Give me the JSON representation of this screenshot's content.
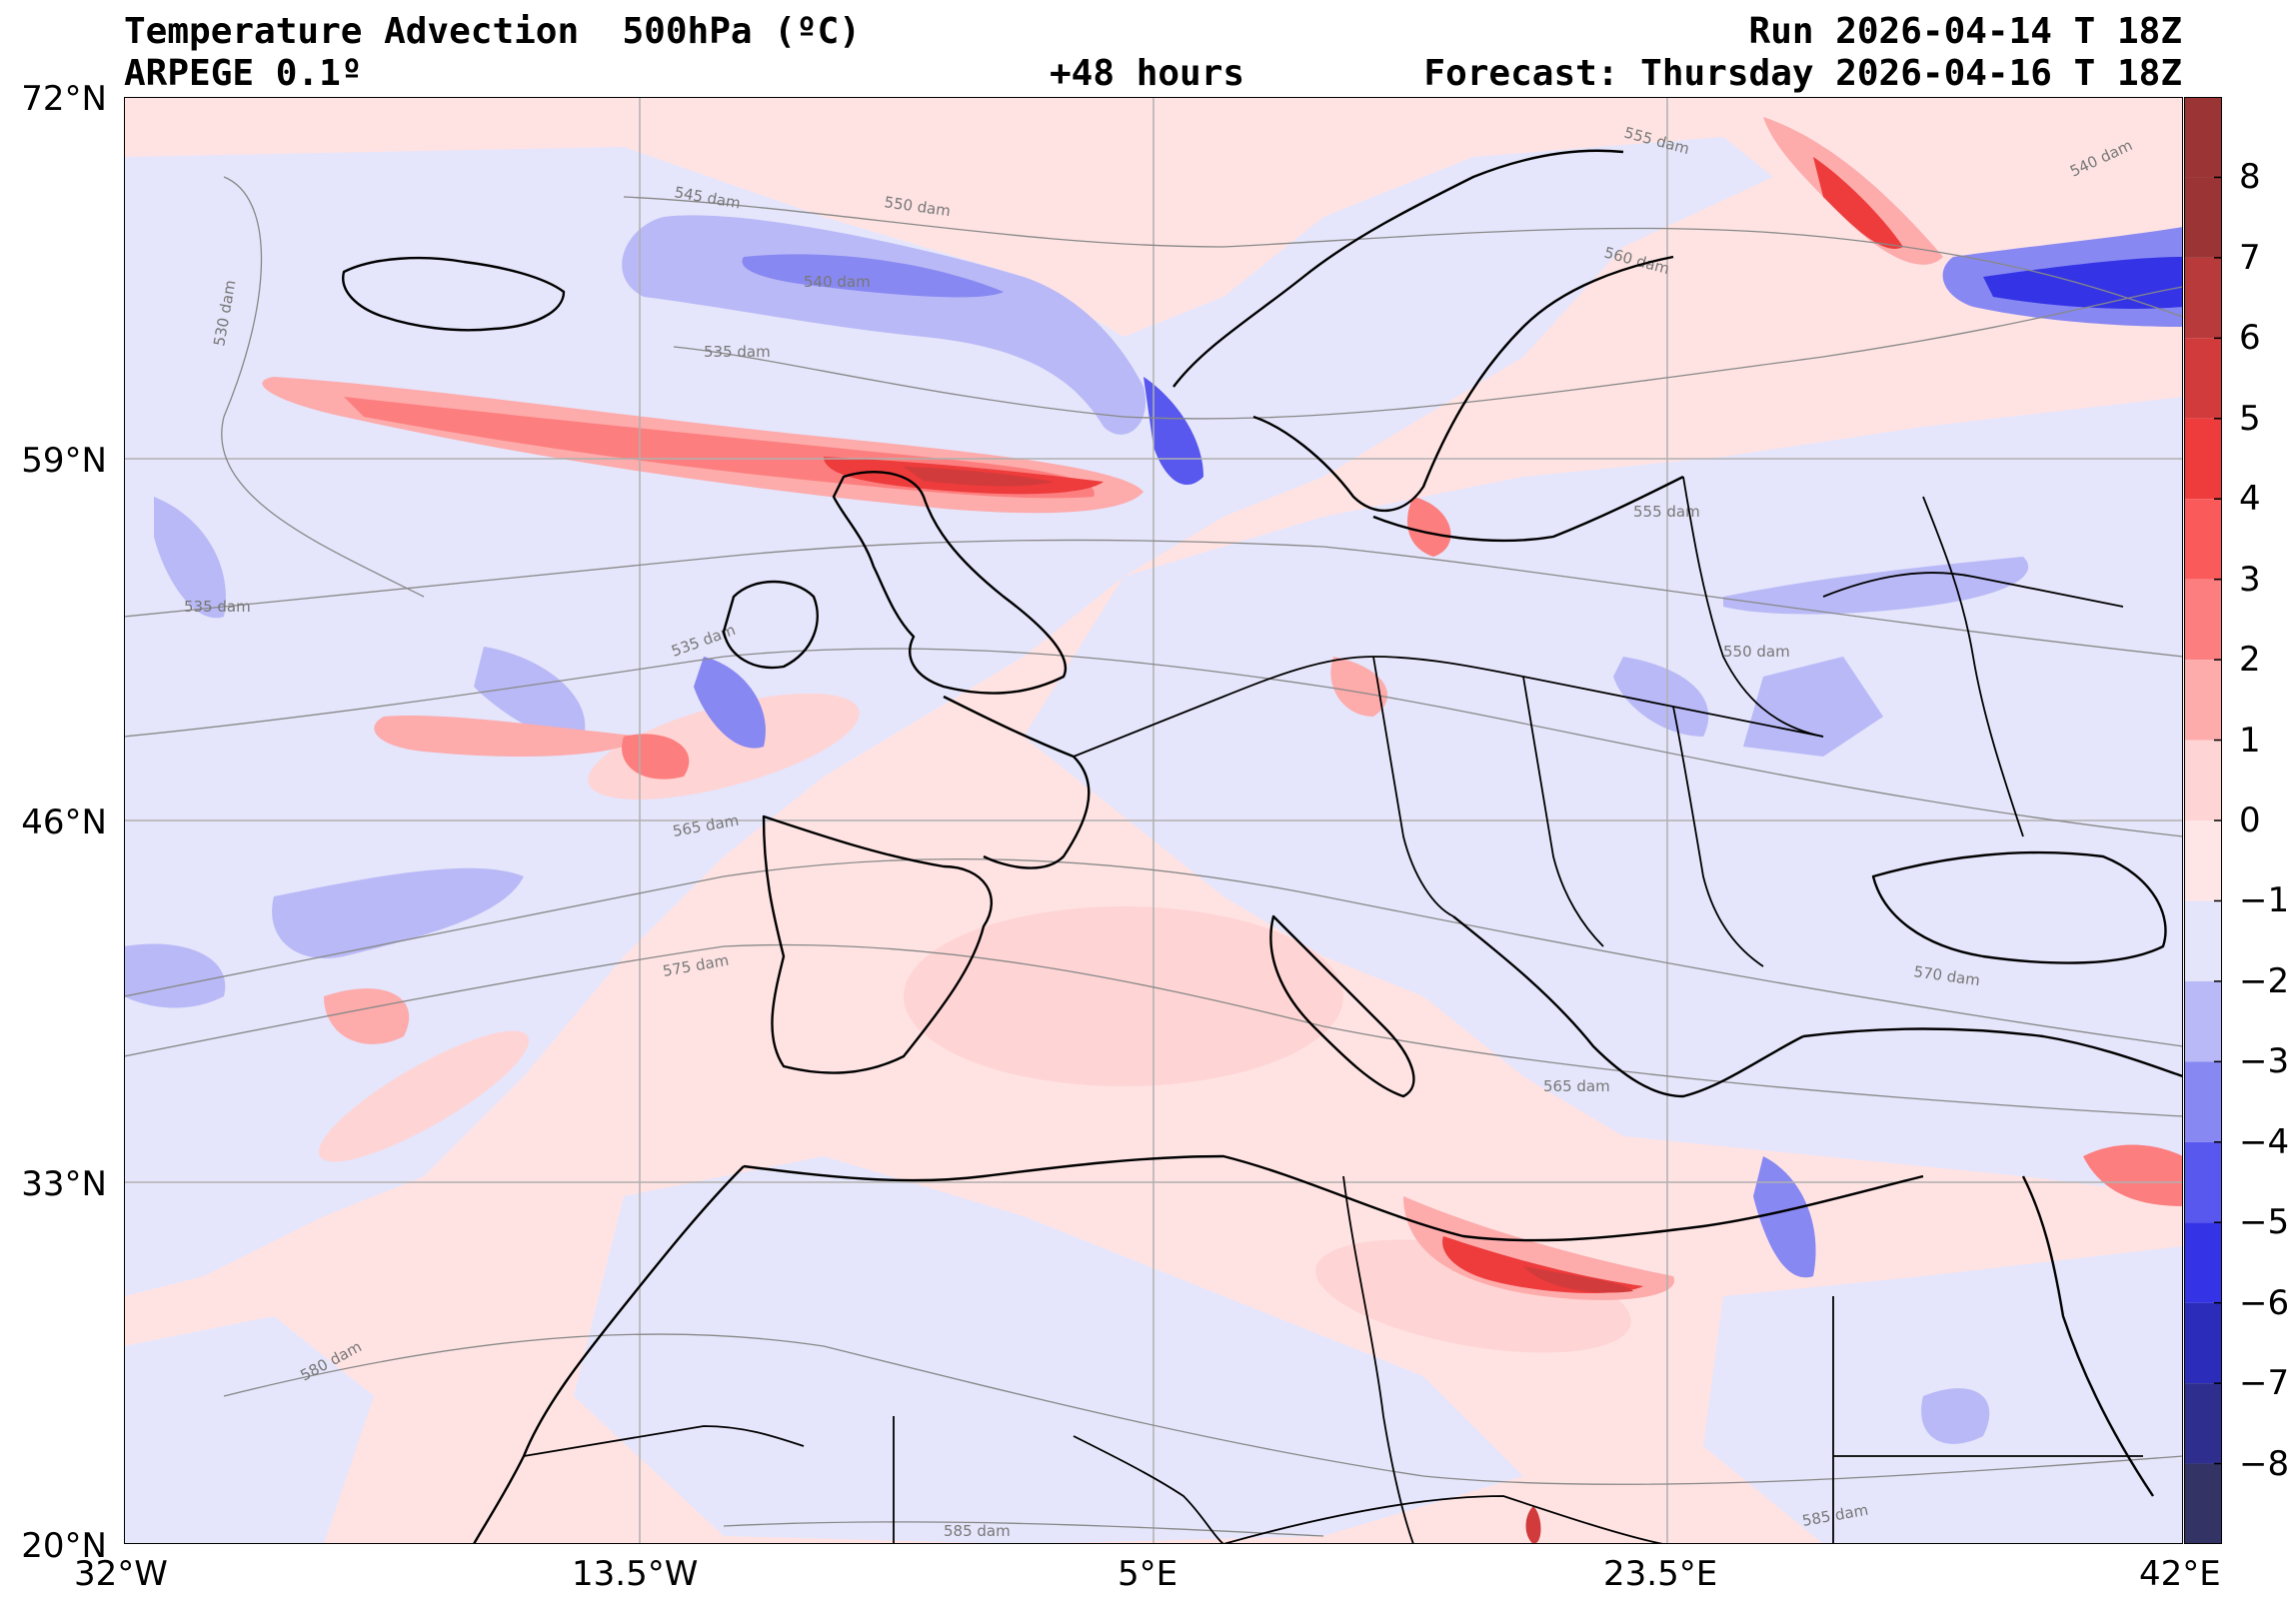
{
  "header": {
    "title": "Temperature Advection  500hPa (ºC)",
    "model": "ARPEGE 0.1º",
    "run": "Run 2026-04-14 T 18Z",
    "lead": "+48 hours",
    "forecast": "Forecast: Thursday 2026-04-16 T 18Z"
  },
  "map": {
    "lat_range": [
      20,
      72
    ],
    "lon_range": [
      -32,
      42
    ],
    "lat_ticks": [
      "72°N",
      "59°N",
      "46°N",
      "33°N",
      "20°N"
    ],
    "lon_ticks": [
      "32°W",
      "13.5°W",
      "5°E",
      "23.5°E",
      "42°E"
    ],
    "contour_labels": [
      "530 dam",
      "535 dam",
      "540 dam",
      "545 dam",
      "550 dam",
      "555 dam",
      "560 dam",
      "565 dam",
      "570 dam",
      "575 dam",
      "580 dam",
      "585 dam",
      "535 dam",
      "555 dam",
      "540 dam",
      "550 dam",
      "565 dam",
      "585 dam",
      "535 dam"
    ]
  },
  "colorbar": {
    "ticks": [
      "8",
      "7",
      "6",
      "5",
      "4",
      "3",
      "2",
      "1",
      "0",
      "−1",
      "−2",
      "−3",
      "−4",
      "−5",
      "−6",
      "−7",
      "−8"
    ],
    "colors_top_to_bottom": [
      "#9b3535",
      "#b83a3a",
      "#d23b3b",
      "#ee3b3b",
      "#fb5a5a",
      "#fc7e7e",
      "#fdabab",
      "#ffd4d4",
      "#ffe6e6",
      "#e4e4fb",
      "#b9b9f7",
      "#8888f2",
      "#5858ee",
      "#3434e6",
      "#2c2cbb",
      "#2e2e8e",
      "#333365"
    ]
  }
}
